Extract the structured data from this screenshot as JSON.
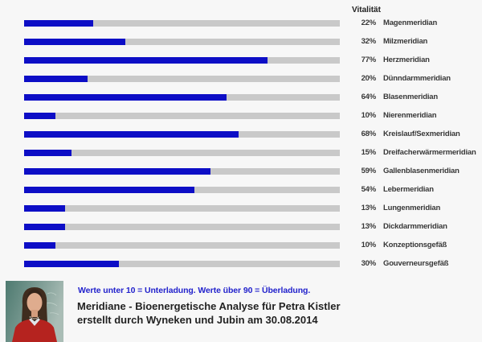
{
  "page": {
    "background": "#F7F7F7"
  },
  "chart_data": {
    "type": "bar",
    "orientation": "horizontal",
    "title": "Vitalität",
    "unit": "%",
    "value_range": [
      0,
      100
    ],
    "grid": false,
    "legend": "none",
    "categories": [
      "Magenmeridian",
      "Milzmeridian",
      "Herzmeridian",
      "Dünndarmmeridian",
      "Blasenmeridian",
      "Nierenmeridian",
      "Kreislauf/Sexmeridian",
      "Dreifacherwärmermeridian",
      "Gallenblasenmeridian",
      "Lebermeridian",
      "Lungenmeridian",
      "Dickdarmmeridian",
      "Konzeptionsgefäß",
      "Gouverneursgefäß"
    ],
    "values": [
      22,
      32,
      77,
      20,
      64,
      10,
      68,
      15,
      59,
      54,
      13,
      13,
      10,
      30
    ],
    "rows": [
      {
        "value": 22,
        "percent_label": "22%",
        "label": "Magenmeridian"
      },
      {
        "value": 32,
        "percent_label": "32%",
        "label": "Milzmeridian"
      },
      {
        "value": 77,
        "percent_label": "77%",
        "label": "Herzmeridian"
      },
      {
        "value": 20,
        "percent_label": "20%",
        "label": "Dünndarmmeridian"
      },
      {
        "value": 64,
        "percent_label": "64%",
        "label": "Blasenmeridian"
      },
      {
        "value": 10,
        "percent_label": "10%",
        "label": "Nierenmeridian"
      },
      {
        "value": 68,
        "percent_label": "68%",
        "label": "Kreislauf/Sexmeridian"
      },
      {
        "value": 15,
        "percent_label": "15%",
        "label": "Dreifacherwärmermeridian"
      },
      {
        "value": 59,
        "percent_label": "59%",
        "label": "Gallenblasenmeridian"
      },
      {
        "value": 54,
        "percent_label": "54%",
        "label": "Lebermeridian"
      },
      {
        "value": 13,
        "percent_label": "13%",
        "label": "Lungenmeridian"
      },
      {
        "value": 13,
        "percent_label": "13%",
        "label": "Dickdarmmeridian"
      },
      {
        "value": 10,
        "percent_label": "10%",
        "label": "Konzeptionsgefäß"
      },
      {
        "value": 30,
        "percent_label": "30%",
        "label": "Gouverneursgefäß"
      }
    ],
    "colors": {
      "fill": "#0D0EC6",
      "track": "#C9C9C9",
      "label_text": "#383838",
      "title_text": "#1F1F1F"
    }
  },
  "footer": {
    "legend_note": "Werte unter 10 = Unterladung. Werte über 90 = Überladung.",
    "note_color": "#2222CC",
    "title_line1": "Meridiane - Bioenergetische Analyse für Petra Kistler",
    "title_line2": "erstellt durch Wyneken und Jubin am 30.08.2014",
    "photo": "portrait-photo"
  }
}
